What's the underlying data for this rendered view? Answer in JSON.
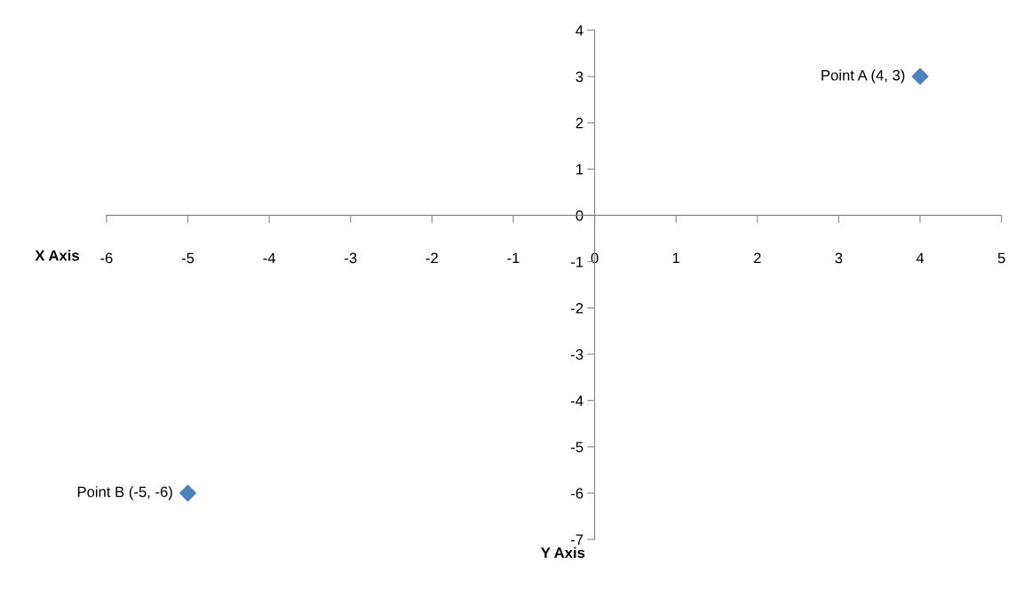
{
  "chart_data": {
    "type": "scatter",
    "xlabel": "Y Axis",
    "ylabel": "X Axis",
    "x": [
      4,
      -5
    ],
    "values": [
      3,
      -6
    ],
    "color": "#4f81bd",
    "marker": "diamond",
    "xlim": [
      -6,
      5
    ],
    "xticks": [
      -6,
      -5,
      -4,
      -3,
      -2,
      -1,
      0,
      1,
      2,
      3,
      4,
      5
    ],
    "ylim": [
      -7,
      4
    ],
    "yticks": [
      -7,
      -6,
      -5,
      -4,
      -3,
      -2,
      -1,
      0,
      1,
      2,
      3,
      4
    ],
    "grid": false,
    "legend": false,
    "annotations": [
      {
        "text": "Point A (4, 3)",
        "x": 4,
        "y": 3
      },
      {
        "text": "Point B (-5, -6)",
        "x": -5,
        "y": -6
      }
    ]
  }
}
